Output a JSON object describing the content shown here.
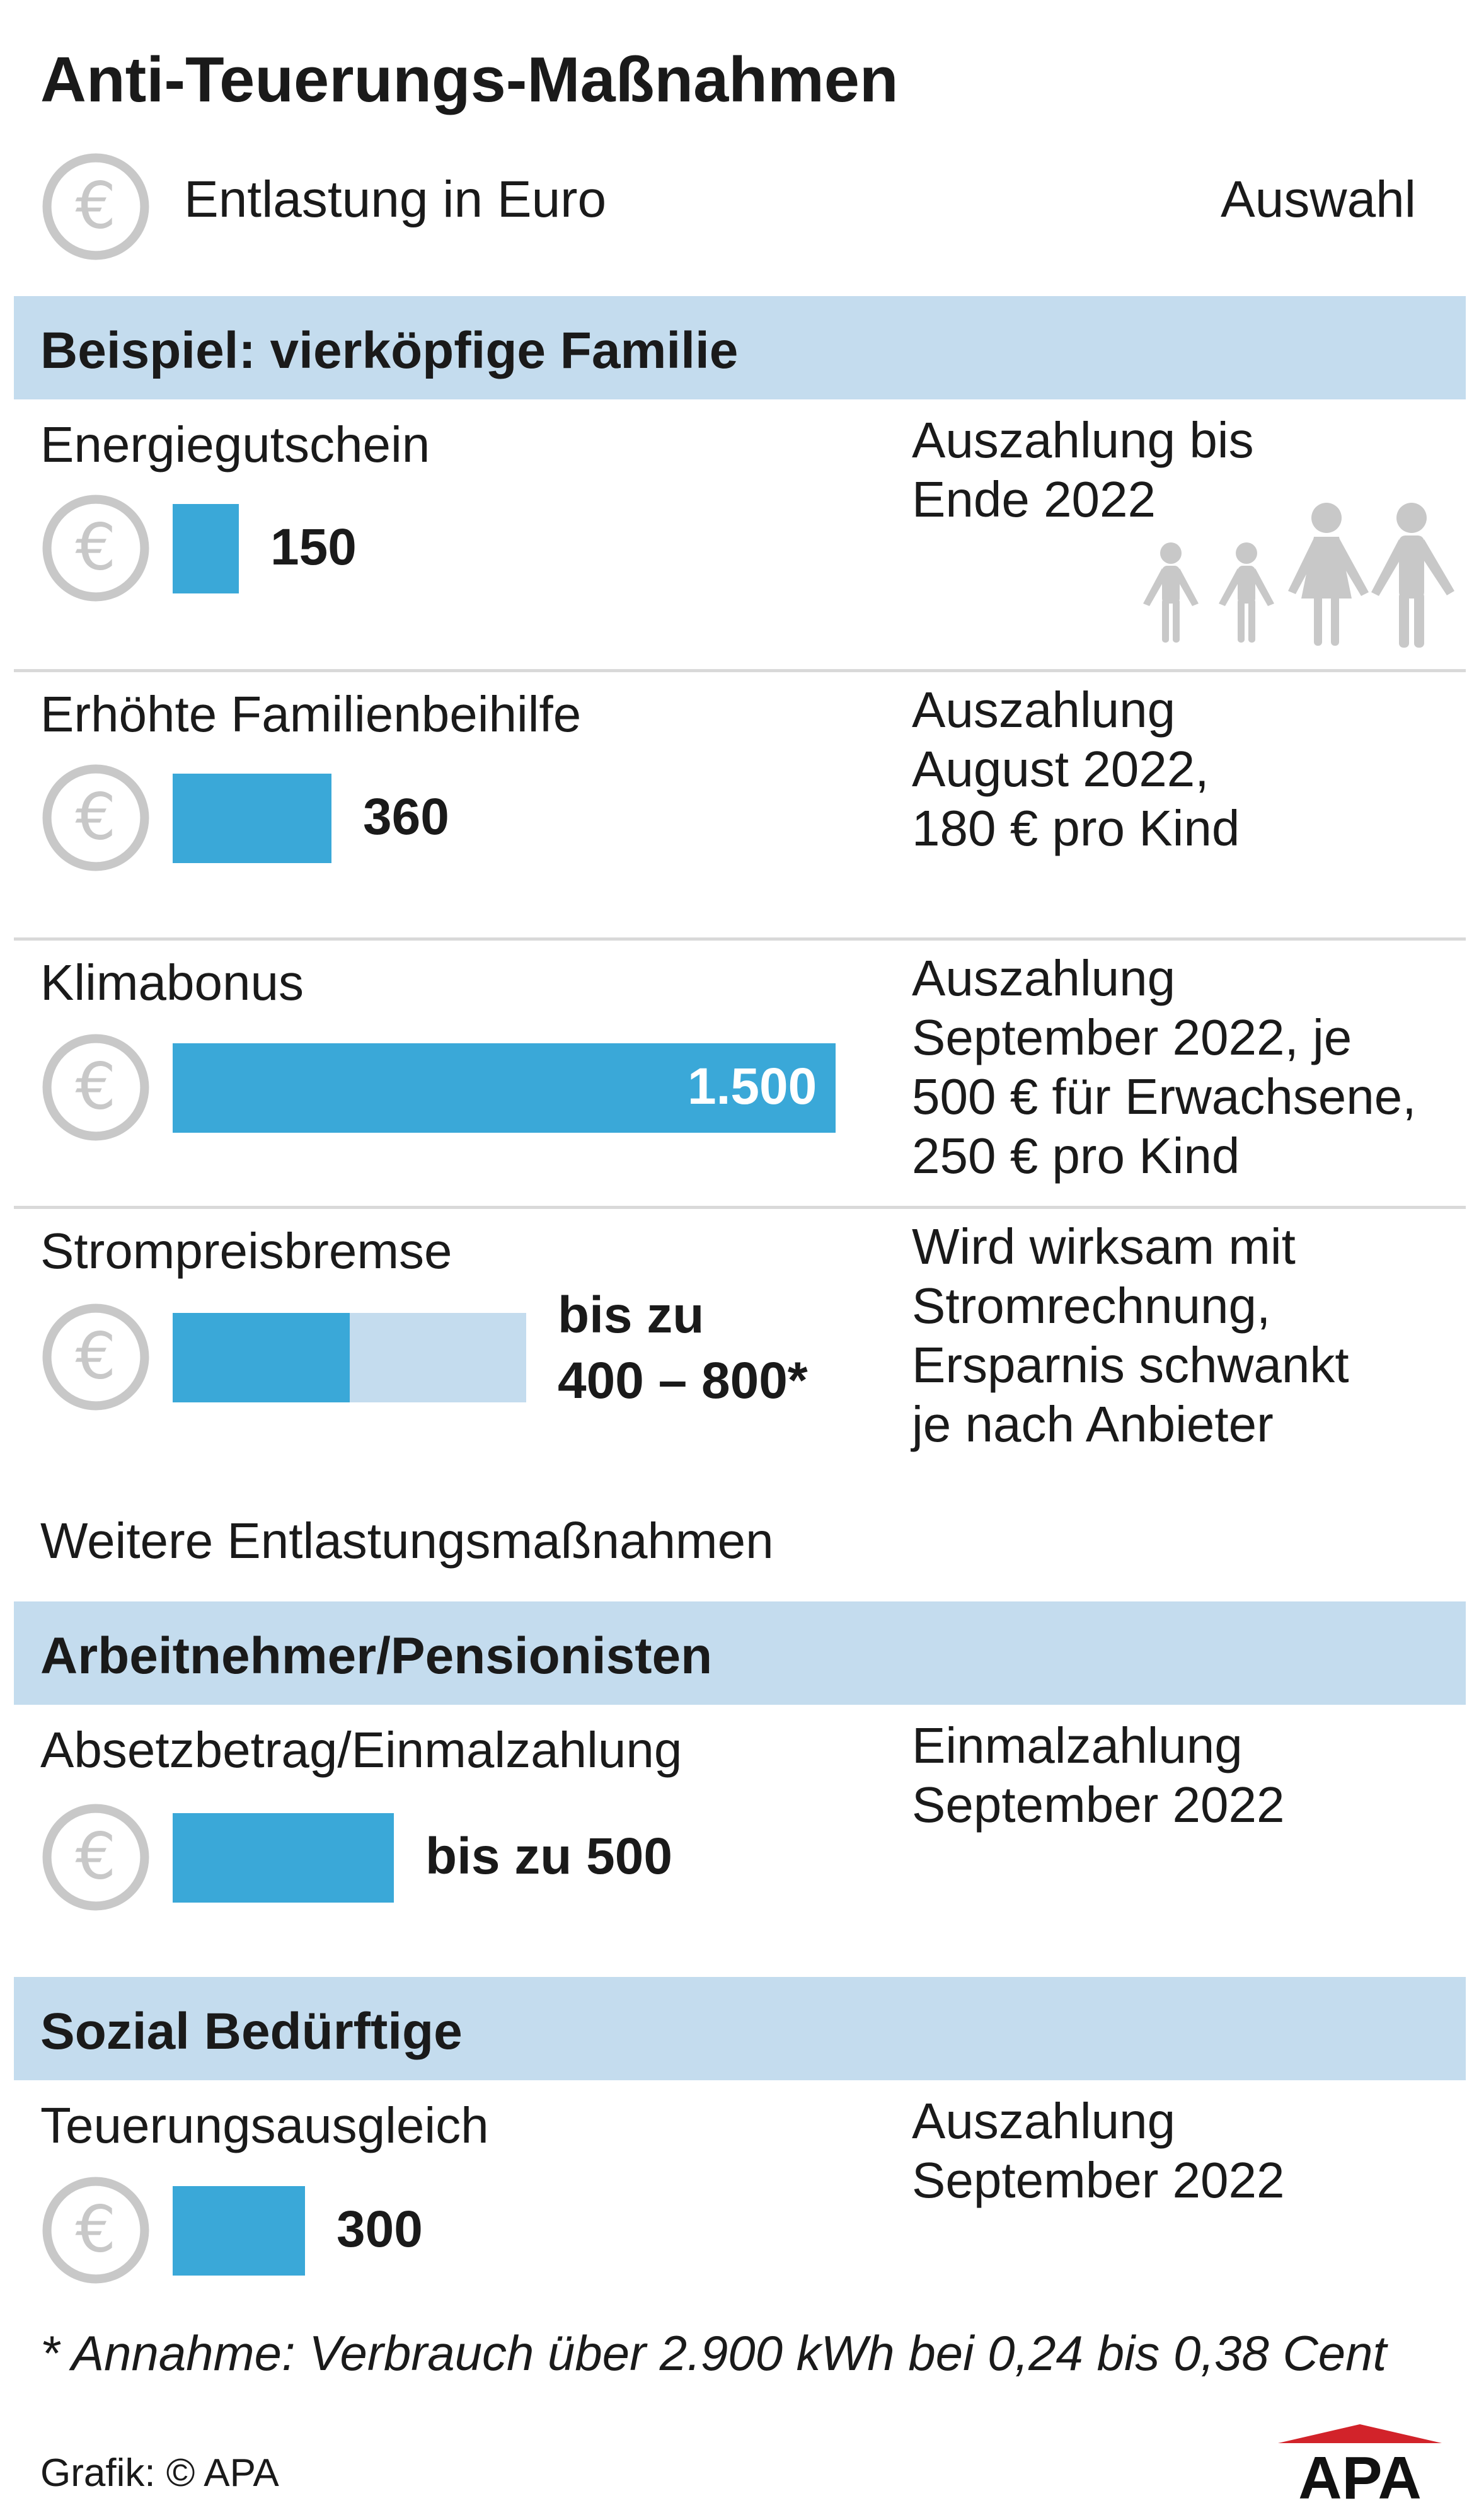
{
  "title": "Anti-Teuerungs-Maßnahmen",
  "legend": {
    "label": "Entlastung in Euro",
    "right_label": "Auswahl",
    "icon": "euro-coin-icon"
  },
  "colors": {
    "bar": "#3aa8d8",
    "bar_range": "#c4dcee",
    "band": "#c4dcee",
    "icon": "#c8c8c8"
  },
  "sections": [
    {
      "heading": "Beispiel: vierköpfige Familie",
      "items": [
        {
          "label": "Energiegutschein",
          "value_label": "150",
          "note": [
            "Auszahlung bis",
            "Ende 2022"
          ]
        },
        {
          "label": "Erhöhte Familienbeihilfe",
          "value_label": "360",
          "note": [
            "Auszahlung",
            "August 2022,",
            "180 € pro Kind"
          ]
        },
        {
          "label": "Klimabonus",
          "value_label": "1.500",
          "note": [
            "Auszahlung",
            "September 2022, je",
            "500 € für Erwachsene,",
            "250 € pro Kind"
          ]
        },
        {
          "label": "Strompreisbremse",
          "value_label": [
            "bis zu",
            "400 – 800*"
          ],
          "note": [
            "Wird wirksam mit",
            "Stromrechnung,",
            "Ersparnis schwankt",
            "je nach Anbieter"
          ]
        }
      ],
      "footer": "Weitere Entlastungsmaßnahmen"
    },
    {
      "heading": "Arbeitnehmer/Pensionisten",
      "items": [
        {
          "label": "Absetzbetrag/Einmalzahlung",
          "value_label": "bis zu 500",
          "note": [
            "Einmalzahlung",
            "September 2022"
          ]
        }
      ]
    },
    {
      "heading": "Sozial Bedürftige",
      "items": [
        {
          "label": "Teuerungsausgleich",
          "value_label": "300",
          "note": [
            "Auszahlung",
            "September 2022"
          ]
        }
      ]
    }
  ],
  "footnote": "* Annahme: Verbrauch über 2.900 kWh bei 0,24 bis 0,38 Cent",
  "credit": "Grafik: © APA",
  "logo_text": "APA",
  "chart_data": {
    "type": "bar",
    "orientation": "horizontal",
    "title": "Anti-Teuerungs-Maßnahmen",
    "unit": "Euro",
    "categories": [
      "Energiegutschein",
      "Erhöhte Familienbeihilfe",
      "Klimabonus",
      "Strompreisbremse",
      "Absetzbetrag/Einmalzahlung",
      "Teuerungsausgleich"
    ],
    "values": [
      150,
      360,
      1500,
      400,
      500,
      300
    ],
    "range_max": [
      null,
      null,
      null,
      800,
      null,
      null
    ]
  }
}
